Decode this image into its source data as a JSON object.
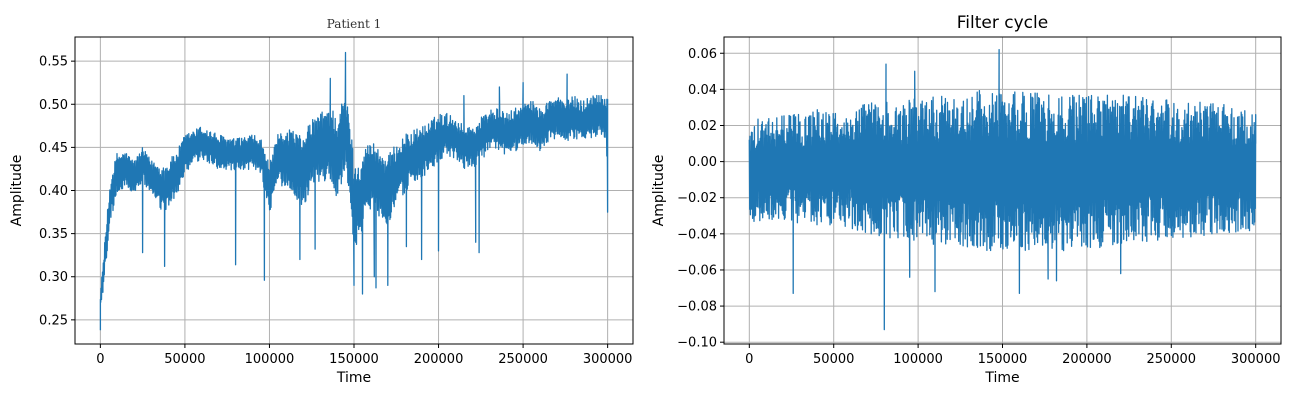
{
  "chart_data": [
    {
      "type": "line",
      "title": "Patient 1",
      "title_font": "serif",
      "xlabel": "Time",
      "ylabel": "Amplitude",
      "xlim": [
        -15000,
        315000
      ],
      "ylim": [
        0.222,
        0.578
      ],
      "xticks": [
        0,
        50000,
        100000,
        150000,
        200000,
        250000,
        300000
      ],
      "xtick_labels": [
        "0",
        "50000",
        "100000",
        "150000",
        "200000",
        "250000",
        "300000"
      ],
      "yticks": [
        0.25,
        0.3,
        0.35,
        0.4,
        0.45,
        0.5,
        0.55
      ],
      "ytick_labels": [
        "0.25",
        "0.30",
        "0.35",
        "0.40",
        "0.45",
        "0.50",
        "0.55"
      ],
      "grid": true,
      "color": "#1f77b4",
      "series": [
        {
          "x": [
            0,
            3000,
            6000,
            10000,
            15000,
            20000,
            25000,
            30000,
            38000,
            45000,
            50000,
            55000,
            60000,
            70000,
            80000,
            90000,
            95000,
            100000,
            105000,
            110000,
            115000,
            120000,
            125000,
            130000,
            135000,
            140000,
            145000,
            148000,
            150000,
            155000,
            160000,
            165000,
            170000,
            175000,
            180000,
            185000,
            190000,
            195000,
            200000,
            205000,
            210000,
            215000,
            220000,
            225000,
            230000,
            235000,
            240000,
            245000,
            250000,
            255000,
            260000,
            265000,
            270000,
            275000,
            280000,
            285000,
            290000,
            295000,
            300000
          ],
          "y": [
            0.27,
            0.33,
            0.39,
            0.42,
            0.425,
            0.415,
            0.43,
            0.415,
            0.4,
            0.42,
            0.44,
            0.45,
            0.455,
            0.445,
            0.44,
            0.445,
            0.44,
            0.4,
            0.435,
            0.44,
            0.43,
            0.42,
            0.445,
            0.45,
            0.455,
            0.44,
            0.47,
            0.43,
            0.38,
            0.4,
            0.42,
            0.41,
            0.4,
            0.42,
            0.43,
            0.44,
            0.445,
            0.45,
            0.46,
            0.465,
            0.46,
            0.45,
            0.45,
            0.46,
            0.47,
            0.47,
            0.465,
            0.47,
            0.475,
            0.48,
            0.47,
            0.48,
            0.485,
            0.48,
            0.485,
            0.48,
            0.485,
            0.49,
            0.485
          ],
          "noise": [
            0.01,
            0.02,
            0.025,
            0.025,
            0.02,
            0.02,
            0.02,
            0.02,
            0.03,
            0.025,
            0.025,
            0.02,
            0.02,
            0.02,
            0.02,
            0.02,
            0.02,
            0.03,
            0.03,
            0.035,
            0.04,
            0.04,
            0.04,
            0.04,
            0.045,
            0.05,
            0.045,
            0.05,
            0.05,
            0.045,
            0.04,
            0.04,
            0.04,
            0.035,
            0.035,
            0.03,
            0.03,
            0.03,
            0.03,
            0.025,
            0.025,
            0.025,
            0.025,
            0.025,
            0.025,
            0.025,
            0.025,
            0.025,
            0.025,
            0.025,
            0.025,
            0.025,
            0.025,
            0.025,
            0.025,
            0.025,
            0.025,
            0.025,
            0.025
          ],
          "extremes": [
            [
              0,
              0.238
            ],
            [
              1500,
              0.282
            ],
            [
              25000,
              0.328
            ],
            [
              38000,
              0.312
            ],
            [
              80000,
              0.314
            ],
            [
              97000,
              0.296
            ],
            [
              118000,
              0.32
            ],
            [
              127000,
              0.332
            ],
            [
              136000,
              0.53
            ],
            [
              145000,
              0.56
            ],
            [
              150000,
              0.29
            ],
            [
              155000,
              0.28
            ],
            [
              162000,
              0.3
            ],
            [
              163000,
              0.287
            ],
            [
              170000,
              0.29
            ],
            [
              181000,
              0.335
            ],
            [
              190000,
              0.32
            ],
            [
              200000,
              0.33
            ],
            [
              215000,
              0.51
            ],
            [
              222000,
              0.34
            ],
            [
              224000,
              0.328
            ],
            [
              236000,
              0.52
            ],
            [
              250000,
              0.525
            ],
            [
              276000,
              0.535
            ],
            [
              299500,
              0.44
            ],
            [
              300000,
              0.375
            ]
          ]
        }
      ]
    },
    {
      "type": "line",
      "title": "Filter cycle",
      "title_font": "sans",
      "xlabel": "Time",
      "ylabel": "Amplitude",
      "xlim": [
        -15000,
        315000
      ],
      "ylim": [
        -0.101,
        0.069
      ],
      "xticks": [
        0,
        50000,
        100000,
        150000,
        200000,
        250000,
        300000
      ],
      "xtick_labels": [
        "0",
        "50000",
        "100000",
        "150000",
        "200000",
        "250000",
        "300000"
      ],
      "yticks": [
        -0.1,
        -0.08,
        -0.06,
        -0.04,
        -0.02,
        0.0,
        0.02,
        0.04,
        0.06
      ],
      "ytick_labels": [
        "−0.10",
        "−0.08",
        "−0.06",
        "−0.04",
        "−0.02",
        "0.00",
        "0.02",
        "0.04",
        "0.06"
      ],
      "grid": true,
      "color": "#1f77b4",
      "series": [
        {
          "x": [
            0,
            20000,
            40000,
            60000,
            80000,
            100000,
            120000,
            140000,
            160000,
            180000,
            200000,
            220000,
            240000,
            260000,
            280000,
            300000
          ],
          "y": [
            -0.005,
            -0.004,
            -0.003,
            -0.003,
            -0.004,
            -0.005,
            -0.005,
            -0.005,
            -0.006,
            -0.006,
            -0.005,
            -0.005,
            -0.004,
            -0.004,
            -0.004,
            -0.004
          ],
          "noise": [
            0.028,
            0.03,
            0.032,
            0.034,
            0.038,
            0.04,
            0.042,
            0.045,
            0.045,
            0.045,
            0.043,
            0.042,
            0.04,
            0.038,
            0.036,
            0.034
          ],
          "extremes": [
            [
              26000,
              -0.073
            ],
            [
              80000,
              -0.093
            ],
            [
              81000,
              0.054
            ],
            [
              95000,
              -0.064
            ],
            [
              98000,
              0.05
            ],
            [
              110000,
              -0.072
            ],
            [
              148000,
              0.062
            ],
            [
              160000,
              -0.073
            ],
            [
              177000,
              -0.065
            ],
            [
              182000,
              -0.066
            ],
            [
              220000,
              -0.062
            ],
            [
              300000,
              0.026
            ]
          ]
        }
      ]
    }
  ]
}
